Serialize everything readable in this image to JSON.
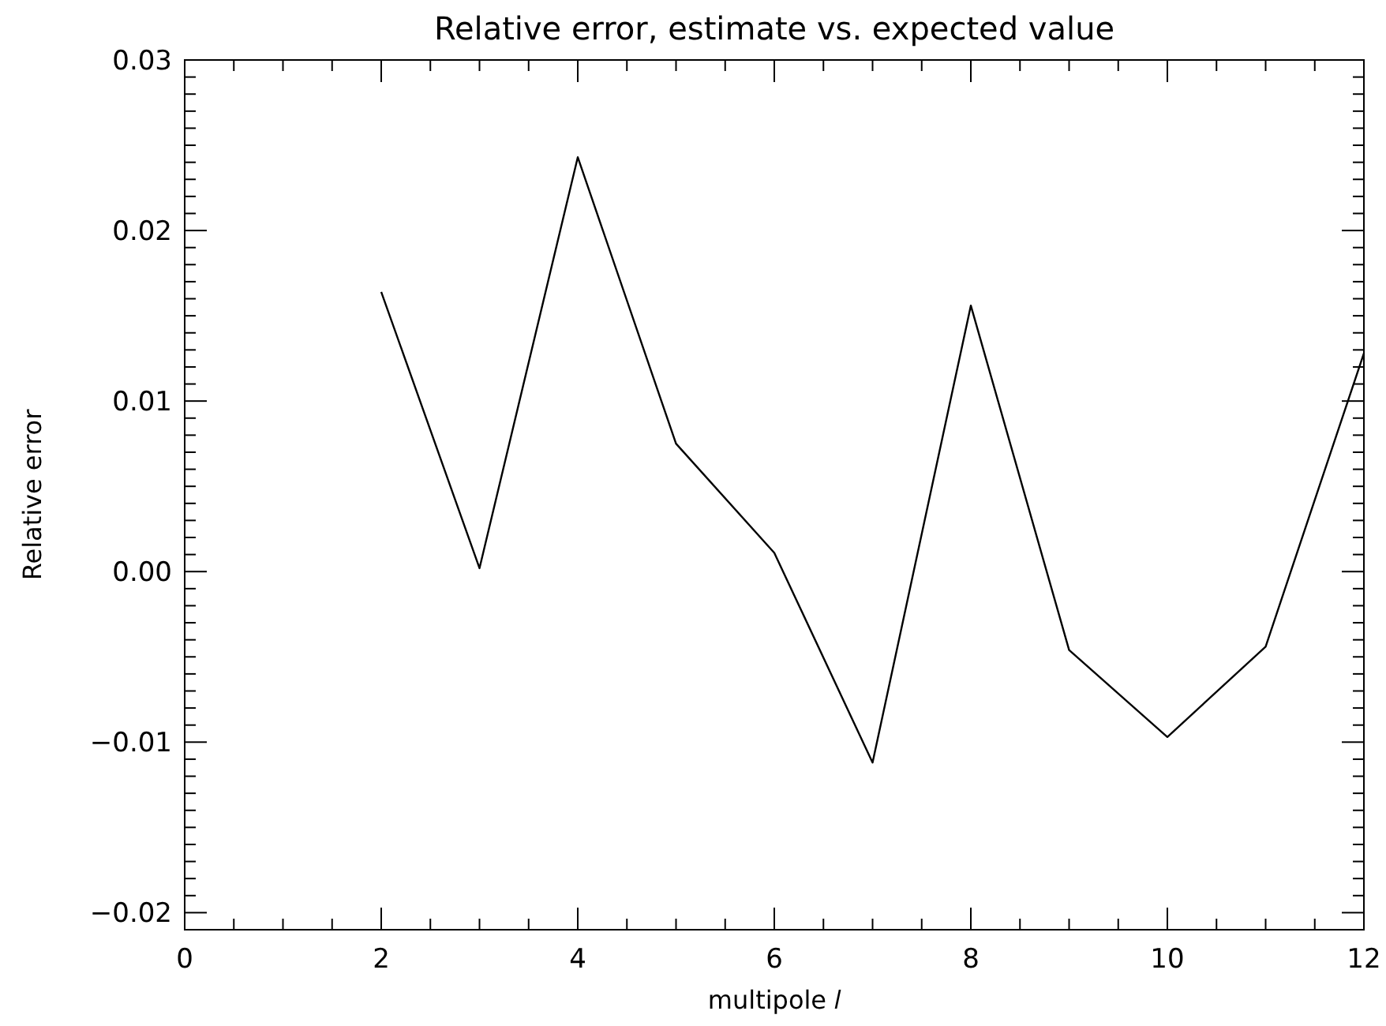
{
  "chart_data": {
    "type": "line",
    "title": "Relative error, estimate vs. expected value",
    "xlabel": "multipole 𝑙",
    "ylabel": "Relative error",
    "x": [
      2,
      3,
      4,
      5,
      6,
      7,
      8,
      9,
      10,
      11,
      12
    ],
    "series": [
      {
        "color": "#000000",
        "values": [
          0.0164,
          0.0002,
          0.0243,
          0.0075,
          0.0011,
          -0.0112,
          0.0156,
          -0.0046,
          -0.0097,
          -0.0044,
          0.0128
        ]
      }
    ],
    "xlim": [
      0,
      12
    ],
    "xticks": [
      0,
      {
        "value": 0.5,
        "label": null
      },
      {
        "value": 1,
        "label": null
      },
      {
        "value": 1.5,
        "label": null
      },
      2,
      {
        "value": 2.5,
        "label": null
      },
      {
        "value": 3,
        "label": null
      },
      {
        "value": 3.5,
        "label": null
      },
      4,
      {
        "value": 4.5,
        "label": null
      },
      {
        "value": 5,
        "label": null
      },
      {
        "value": 5.5,
        "label": null
      },
      6,
      {
        "value": 6.5,
        "label": null
      },
      {
        "value": 7,
        "label": null
      },
      {
        "value": 7.5,
        "label": null
      },
      8,
      {
        "value": 8.5,
        "label": null
      },
      {
        "value": 9,
        "label": null
      },
      {
        "value": 9.5,
        "label": null
      },
      10,
      {
        "value": 10.5,
        "label": null
      },
      {
        "value": 11,
        "label": null
      },
      {
        "value": 11.5,
        "label": null
      },
      12
    ],
    "ylim": [
      -0.021,
      0.03
    ],
    "yticks": [
      {
        "value": -0.02,
        "label": "−0.02"
      },
      {
        "value": -0.019,
        "label": null
      },
      {
        "value": -0.018,
        "label": null
      },
      {
        "value": -0.017,
        "label": null
      },
      {
        "value": -0.016,
        "label": null
      },
      {
        "value": -0.015,
        "label": null
      },
      {
        "value": -0.014,
        "label": null
      },
      {
        "value": -0.013,
        "label": null
      },
      {
        "value": -0.012,
        "label": null
      },
      {
        "value": -0.011,
        "label": null
      },
      {
        "value": -0.01,
        "label": "−0.01"
      },
      {
        "value": -0.009,
        "label": null
      },
      {
        "value": -0.008,
        "label": null
      },
      {
        "value": -0.007,
        "label": null
      },
      {
        "value": -0.006,
        "label": null
      },
      {
        "value": -0.005,
        "label": null
      },
      {
        "value": -0.004,
        "label": null
      },
      {
        "value": -0.003,
        "label": null
      },
      {
        "value": -0.002,
        "label": null
      },
      {
        "value": -0.001,
        "label": null
      },
      {
        "value": 0,
        "label": "0.00"
      },
      {
        "value": 0.001,
        "label": null
      },
      {
        "value": 0.002,
        "label": null
      },
      {
        "value": 0.003,
        "label": null
      },
      {
        "value": 0.004,
        "label": null
      },
      {
        "value": 0.005,
        "label": null
      },
      {
        "value": 0.006,
        "label": null
      },
      {
        "value": 0.007,
        "label": null
      },
      {
        "value": 0.008,
        "label": null
      },
      {
        "value": 0.009,
        "label": null
      },
      0.01,
      {
        "value": 0.011,
        "label": null
      },
      {
        "value": 0.012,
        "label": null
      },
      {
        "value": 0.013,
        "label": null
      },
      {
        "value": 0.014,
        "label": null
      },
      {
        "value": 0.015,
        "label": null
      },
      {
        "value": 0.016,
        "label": null
      },
      {
        "value": 0.017,
        "label": null
      },
      {
        "value": 0.018,
        "label": null
      },
      {
        "value": 0.019,
        "label": null
      },
      0.02,
      {
        "value": 0.021,
        "label": null
      },
      {
        "value": 0.022,
        "label": null
      },
      {
        "value": 0.023,
        "label": null
      },
      {
        "value": 0.024,
        "label": null
      },
      {
        "value": 0.025,
        "label": null
      },
      {
        "value": 0.026,
        "label": null
      },
      {
        "value": 0.027,
        "label": null
      },
      {
        "value": 0.028,
        "label": null
      },
      {
        "value": 0.029,
        "label": null
      },
      0.03
    ],
    "grid": false
  }
}
